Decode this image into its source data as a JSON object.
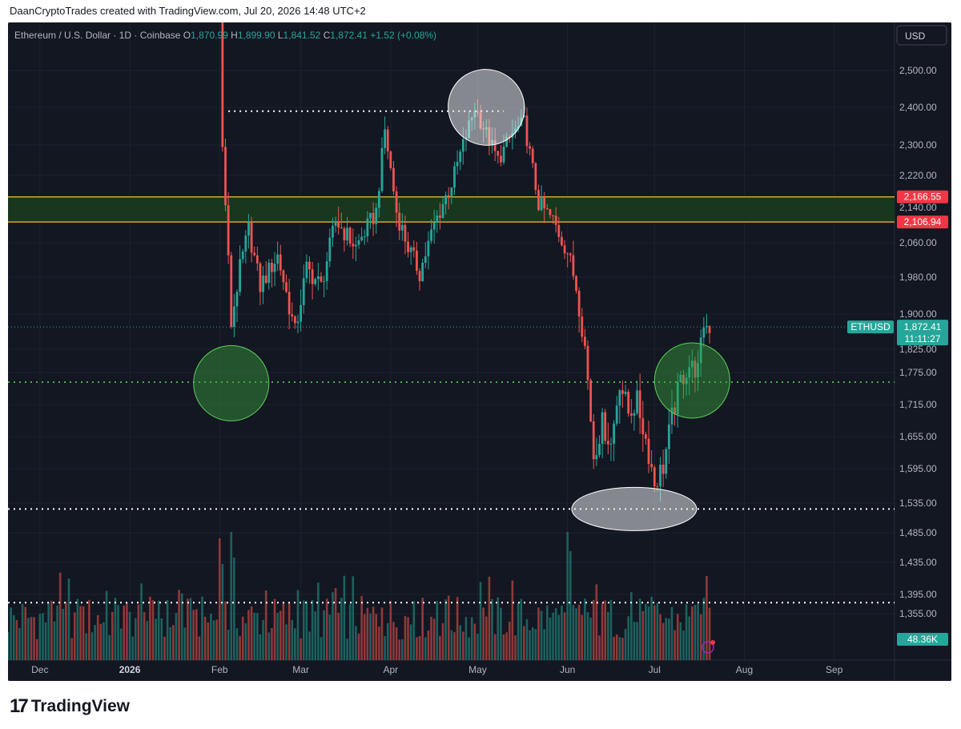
{
  "header": {
    "attribution": "DaanCryptoTrades created with TradingView.com, Jul 20, 2026 14:48 UTC+2"
  },
  "footer": {
    "brand_mark": "17",
    "brand_name": "TradingView"
  },
  "colors": {
    "bg": "#131722",
    "up": "#26a69a",
    "down": "#ef5350",
    "zone": "#17371f",
    "zone_line": "#d9a233",
    "grid": "#1e222d",
    "text": "#b2b5be"
  },
  "chart_data": {
    "type": "candlestick",
    "legend": {
      "symbol": "Ethereum / U.S. Dollar · 1D · Coinbase",
      "o_label": "O",
      "o_value": "1,870.99",
      "h_label": "H",
      "h_value": "1,899.90",
      "l_label": "L",
      "l_value": "1,841.52",
      "c_label": "C",
      "c_value": "1,872.41",
      "change": "+1.52 (+0.08%)"
    },
    "currency_button": "USD",
    "x_ticks": [
      "Dec",
      "2026",
      "Feb",
      "Mar",
      "Apr",
      "May",
      "Jun",
      "Jul",
      "Aug",
      "Sep"
    ],
    "y_ticks": [
      "2,500.00",
      "2,400.00",
      "2,300.00",
      "2,220.00",
      "2,140.00",
      "2,060.00",
      "1,980.00",
      "1,900.00",
      "1,825.00",
      "1,775.00",
      "1,715.00",
      "1,655.00",
      "1,595.00",
      "1,535.00",
      "1,485.00",
      "1,435.00",
      "1,395.00",
      "1,355.00"
    ],
    "y_tick_values": [
      2500,
      2400,
      2300,
      2220,
      2140,
      2060,
      1980,
      1900,
      1825,
      1775,
      1715,
      1655,
      1595,
      1535,
      1485,
      1435,
      1395,
      1355
    ],
    "zone": {
      "top": 2166.55,
      "bottom": 2106.94,
      "top_label": "2,166.55",
      "bottom_label": "2,106.94"
    },
    "levels": [
      {
        "price": 2390,
        "start_date": "2026-02-04",
        "end_date": "2026-05-10",
        "color": "#ffffff"
      },
      {
        "price": 1757,
        "start_date": "2025-11-20",
        "end_date": "2026-09-30",
        "color": "#4caf50"
      },
      {
        "price": 1525,
        "start_date": "2025-11-20",
        "end_date": "2026-09-30",
        "color": "#ffffff"
      },
      {
        "price": 1378,
        "start_date": "2025-11-20",
        "end_date": "2026-09-30",
        "color": "#ffffff"
      }
    ],
    "circles": [
      {
        "date": "2026-02-05",
        "price": 1755,
        "style": "green"
      },
      {
        "date": "2026-07-14",
        "price": 1760,
        "style": "green"
      },
      {
        "date": "2026-05-04",
        "price": 2400,
        "style": "white"
      },
      {
        "date": "2026-06-24",
        "price": 1525,
        "style": "white"
      }
    ],
    "last_price": {
      "symbol": "ETHUSD",
      "price": "1,872.41",
      "countdown": "11:11:27",
      "value": 1872.41
    },
    "volume_label": "48.36K",
    "anchors": [
      {
        "date": "2026-02-01",
        "price": 2700
      },
      {
        "date": "2026-02-02",
        "price": 2290
      },
      {
        "date": "2026-02-03",
        "price": 2150
      },
      {
        "date": "2026-02-05",
        "price": 1880
      },
      {
        "date": "2026-02-08",
        "price": 2000
      },
      {
        "date": "2026-02-11",
        "price": 2090
      },
      {
        "date": "2026-02-15",
        "price": 1960
      },
      {
        "date": "2026-02-21",
        "price": 2030
      },
      {
        "date": "2026-02-27",
        "price": 1860
      },
      {
        "date": "2026-03-03",
        "price": 2000
      },
      {
        "date": "2026-03-08",
        "price": 1960
      },
      {
        "date": "2026-03-13",
        "price": 2110
      },
      {
        "date": "2026-03-20",
        "price": 2050
      },
      {
        "date": "2026-03-27",
        "price": 2130
      },
      {
        "date": "2026-03-30",
        "price": 2340
      },
      {
        "date": "2026-04-03",
        "price": 2130
      },
      {
        "date": "2026-04-07",
        "price": 2050
      },
      {
        "date": "2026-04-11",
        "price": 1990
      },
      {
        "date": "2026-04-16",
        "price": 2100
      },
      {
        "date": "2026-04-22",
        "price": 2200
      },
      {
        "date": "2026-04-26",
        "price": 2300
      },
      {
        "date": "2026-04-30",
        "price": 2400
      },
      {
        "date": "2026-05-04",
        "price": 2330
      },
      {
        "date": "2026-05-08",
        "price": 2260
      },
      {
        "date": "2026-05-13",
        "price": 2330
      },
      {
        "date": "2026-05-17",
        "price": 2360
      },
      {
        "date": "2026-05-22",
        "price": 2150
      },
      {
        "date": "2026-05-27",
        "price": 2110
      },
      {
        "date": "2026-06-01",
        "price": 2040
      },
      {
        "date": "2026-06-04",
        "price": 1960
      },
      {
        "date": "2026-06-07",
        "price": 1830
      },
      {
        "date": "2026-06-10",
        "price": 1620
      },
      {
        "date": "2026-06-13",
        "price": 1680
      },
      {
        "date": "2026-06-16",
        "price": 1640
      },
      {
        "date": "2026-06-19",
        "price": 1760
      },
      {
        "date": "2026-06-22",
        "price": 1700
      },
      {
        "date": "2026-06-25",
        "price": 1720
      },
      {
        "date": "2026-06-28",
        "price": 1650
      },
      {
        "date": "2026-07-01",
        "price": 1570
      },
      {
        "date": "2026-07-04",
        "price": 1600
      },
      {
        "date": "2026-07-07",
        "price": 1690
      },
      {
        "date": "2026-07-10",
        "price": 1760
      },
      {
        "date": "2026-07-13",
        "price": 1790
      },
      {
        "date": "2026-07-16",
        "price": 1780
      },
      {
        "date": "2026-07-18",
        "price": 1880
      },
      {
        "date": "2026-07-20",
        "price": 1872
      }
    ]
  }
}
